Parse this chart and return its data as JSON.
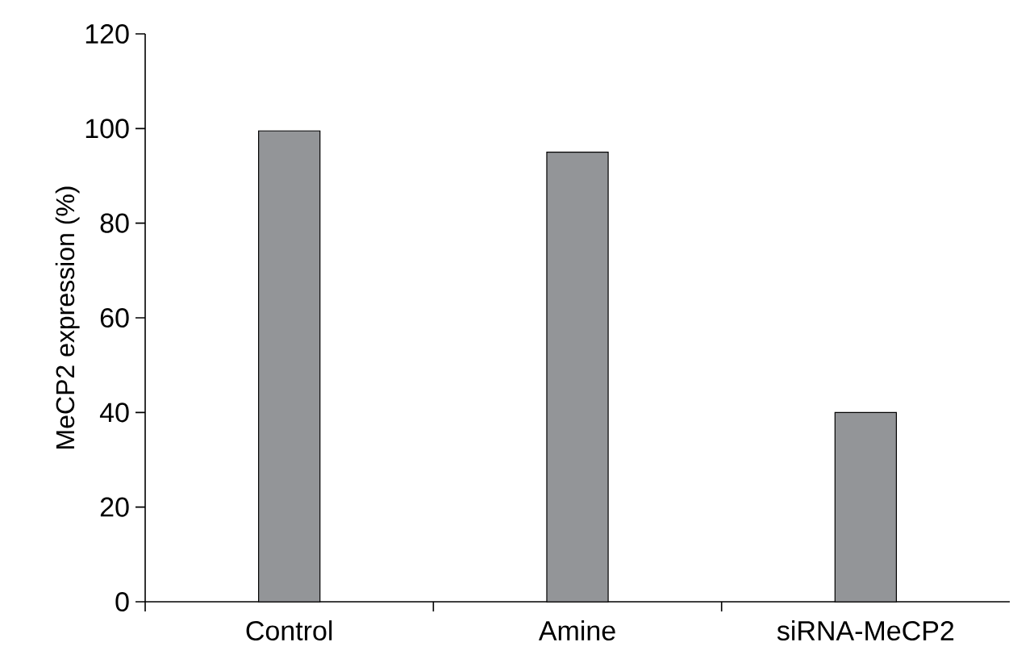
{
  "chart_data": {
    "type": "bar",
    "ylabel": "MeCP2 expression (%)",
    "categories": [
      "Control",
      "Amine",
      "siRNA-MeCP2"
    ],
    "values": [
      99.5,
      95,
      40
    ],
    "color": "#939598",
    "ylim": [
      0,
      120
    ],
    "yticks": [
      0,
      20,
      40,
      60,
      80,
      100,
      120
    ],
    "grid": false
  }
}
